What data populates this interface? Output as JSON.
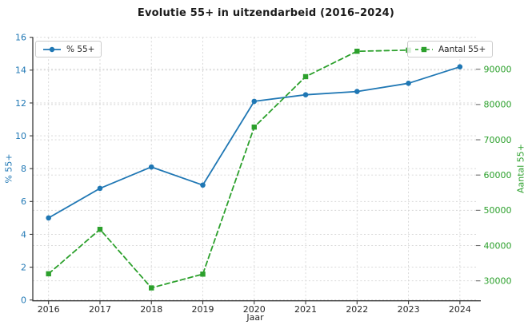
{
  "title": "Evolutie 55+ in uitzendarbeid (2016–2024)",
  "chart_data": {
    "type": "line",
    "title": "Evolutie 55+ in uitzendarbeid (2016–2024)",
    "xlabel": "Jaar",
    "ylabel_left": "% 55+",
    "ylabel_right": "Aantal 55+",
    "x_tick_years": [
      2016,
      2017,
      2018,
      2019,
      2020,
      2021,
      2022,
      2023,
      2024
    ],
    "y_ticks_left": [
      0,
      2,
      4,
      6,
      8,
      10,
      12,
      14,
      16
    ],
    "y_ticks_right": [
      30000,
      40000,
      50000,
      60000,
      70000,
      80000,
      90000
    ],
    "ylim_left": [
      0,
      16
    ],
    "grid": true,
    "legend_positions": [
      "upper left",
      "upper right"
    ],
    "series": [
      {
        "name": "% 55+",
        "axis": "left",
        "color": "#1f77b4",
        "line_style": "solid",
        "marker": "circle",
        "x": [
          2016,
          2017,
          2018,
          2019,
          2020,
          2021,
          2022,
          2023,
          2024
        ],
        "values": [
          5.0,
          6.8,
          8.1,
          7.0,
          12.1,
          12.5,
          12.7,
          13.2,
          14.2
        ]
      },
      {
        "name": "Aantal 55+",
        "axis": "right",
        "color": "#2ca02c",
        "line_style": "dashed",
        "marker": "square",
        "x": [
          2016,
          2017,
          2018,
          2019,
          2020,
          2021,
          2022,
          2023
        ],
        "values": [
          32000,
          44600,
          28000,
          31900,
          73600,
          87900,
          95100,
          95400
        ]
      }
    ],
    "axis_colors": {
      "left": "#1f77b4",
      "right": "#2ca02c",
      "x": "#262626"
    }
  }
}
